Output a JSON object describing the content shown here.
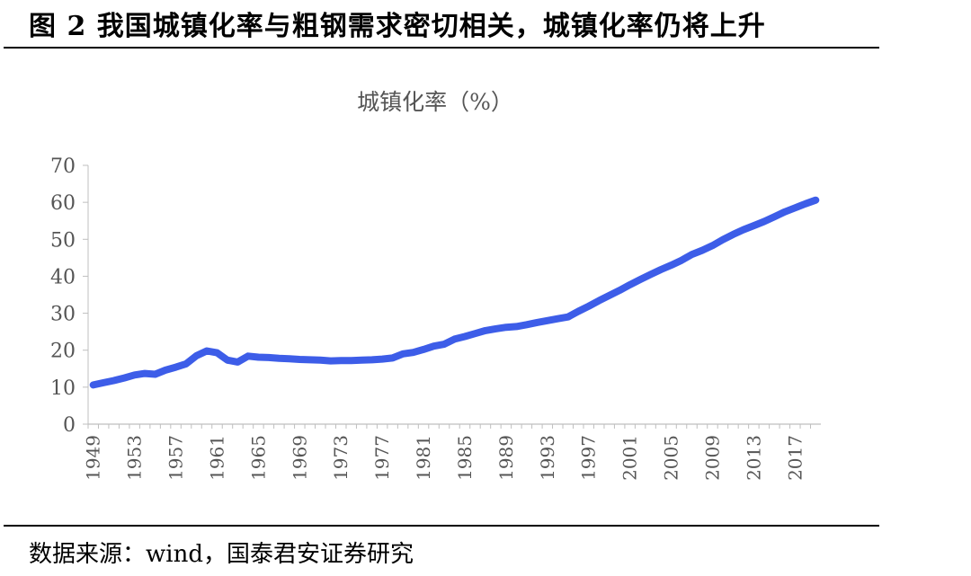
{
  "figure": {
    "title": "图 2  我国城镇化率与粗钢需求密切相关，城镇化率仍将上升",
    "source_label": "数据来源：",
    "source_text": "wind，国泰君安证券研究"
  },
  "chart_data": {
    "type": "line",
    "title": "城镇化率（%）",
    "xlabel": "",
    "ylabel": "",
    "ylim": [
      0,
      70
    ],
    "yticks": [
      0,
      10,
      20,
      30,
      40,
      50,
      60,
      70
    ],
    "xtick_labels": [
      "1949",
      "1953",
      "1957",
      "1961",
      "1965",
      "1969",
      "1973",
      "1977",
      "1981",
      "1985",
      "1989",
      "1993",
      "1997",
      "2001",
      "2005",
      "2009",
      "2013",
      "2017"
    ],
    "grid": false,
    "legend": "none",
    "series": [
      {
        "color": "#3d5de8",
        "x": [
          1949,
          1950,
          1951,
          1952,
          1953,
          1954,
          1955,
          1956,
          1957,
          1958,
          1959,
          1960,
          1961,
          1962,
          1963,
          1964,
          1965,
          1966,
          1967,
          1968,
          1969,
          1970,
          1971,
          1972,
          1973,
          1974,
          1975,
          1976,
          1977,
          1978,
          1979,
          1980,
          1981,
          1982,
          1983,
          1984,
          1985,
          1986,
          1987,
          1988,
          1989,
          1990,
          1991,
          1992,
          1993,
          1994,
          1995,
          1996,
          1997,
          1998,
          1999,
          2000,
          2001,
          2002,
          2003,
          2004,
          2005,
          2006,
          2007,
          2008,
          2009,
          2010,
          2011,
          2012,
          2013,
          2014,
          2015,
          2016,
          2017,
          2018,
          2019
        ],
        "values": [
          10.6,
          11.2,
          11.8,
          12.5,
          13.3,
          13.7,
          13.5,
          14.6,
          15.4,
          16.3,
          18.5,
          19.8,
          19.3,
          17.3,
          16.8,
          18.4,
          18.1,
          18.0,
          17.8,
          17.7,
          17.5,
          17.4,
          17.3,
          17.1,
          17.2,
          17.2,
          17.3,
          17.4,
          17.6,
          17.9,
          19.0,
          19.4,
          20.2,
          21.1,
          21.6,
          23.0,
          23.7,
          24.5,
          25.3,
          25.8,
          26.2,
          26.4,
          26.9,
          27.5,
          28.0,
          28.5,
          29.0,
          30.5,
          31.9,
          33.4,
          34.8,
          36.2,
          37.7,
          39.1,
          40.5,
          41.8,
          43.0,
          44.3,
          45.9,
          47.0,
          48.3,
          49.9,
          51.3,
          52.6,
          53.7,
          54.8,
          56.1,
          57.4,
          58.5,
          59.6,
          60.6
        ]
      }
    ]
  }
}
